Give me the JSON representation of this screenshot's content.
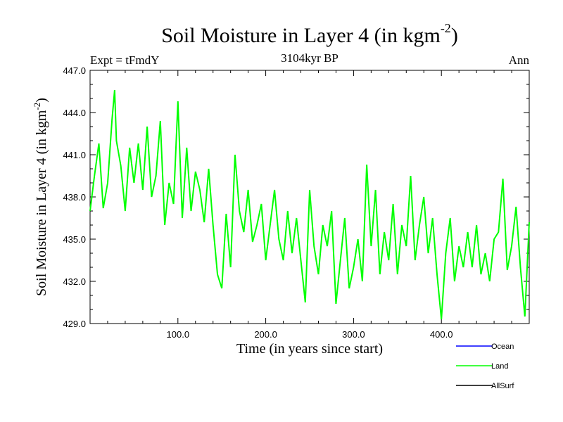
{
  "chart_data": {
    "type": "line",
    "title": "Soil Moisture in Layer 4 (in kgm",
    "title_superscript": "-2",
    "title_suffix": ")",
    "subtitle": "3104kyr BP",
    "left_label": "Expt = tFmdY",
    "right_label": "Ann",
    "xlabel": "Time (in years since start)",
    "ylabel": "Soil Moisture in Layer 4 (in kgm",
    "ylabel_superscript": "-2",
    "ylabel_suffix": ")",
    "xlim": [
      0,
      500
    ],
    "ylim": [
      429.0,
      447.0
    ],
    "x_ticks": [
      100,
      200,
      300,
      400
    ],
    "x_tick_labels": [
      "100.0",
      "200.0",
      "300.0",
      "400.0"
    ],
    "y_ticks": [
      429,
      432,
      435,
      438,
      441,
      444,
      447
    ],
    "y_tick_labels": [
      "429.0",
      "432.0",
      "435.0",
      "438.0",
      "441.0",
      "444.0",
      "447.0"
    ],
    "legend": [
      {
        "name": "Ocean",
        "color": "#0000ff"
      },
      {
        "name": "Land",
        "color": "#00ff00"
      },
      {
        "name": "AllSurf",
        "color": "#000000"
      }
    ],
    "series": [
      {
        "name": "Land",
        "color": "#00ff00",
        "x": [
          0,
          5,
          10,
          15,
          20,
          25,
          28,
          30,
          35,
          40,
          45,
          50,
          55,
          60,
          65,
          70,
          75,
          80,
          85,
          90,
          95,
          100,
          105,
          110,
          115,
          120,
          125,
          130,
          135,
          140,
          145,
          150,
          155,
          160,
          165,
          170,
          175,
          180,
          185,
          190,
          195,
          200,
          205,
          210,
          215,
          220,
          225,
          230,
          235,
          240,
          245,
          250,
          255,
          260,
          265,
          270,
          275,
          280,
          285,
          290,
          295,
          300,
          305,
          310,
          315,
          320,
          325,
          330,
          335,
          340,
          345,
          350,
          355,
          360,
          365,
          370,
          375,
          380,
          385,
          390,
          395,
          400,
          405,
          410,
          415,
          420,
          425,
          430,
          435,
          440,
          445,
          450,
          455,
          460,
          465,
          470,
          475,
          480,
          485,
          490,
          495,
          500
        ],
        "values": [
          437.0,
          439.5,
          441.8,
          437.2,
          439.0,
          443.5,
          445.6,
          442.0,
          440.2,
          437.0,
          441.5,
          439.0,
          441.8,
          438.5,
          443.0,
          438.0,
          439.5,
          443.4,
          436.0,
          439.0,
          437.5,
          444.8,
          436.5,
          441.5,
          437.0,
          439.8,
          438.5,
          436.2,
          440.0,
          436.0,
          432.5,
          431.5,
          436.8,
          433.0,
          441.0,
          437.0,
          435.5,
          438.5,
          434.8,
          436.0,
          437.5,
          433.5,
          436.0,
          438.5,
          435.0,
          433.5,
          437.0,
          434.0,
          436.5,
          433.5,
          430.5,
          438.5,
          434.5,
          432.5,
          436.0,
          434.5,
          437.0,
          430.4,
          433.5,
          436.5,
          431.5,
          433.0,
          435.0,
          432.0,
          440.3,
          434.5,
          438.5,
          432.5,
          435.5,
          433.5,
          437.5,
          432.5,
          436.0,
          434.5,
          439.5,
          433.5,
          436.0,
          438.0,
          434.0,
          436.5,
          432.5,
          429.3,
          434.0,
          436.5,
          432.0,
          434.5,
          433.0,
          435.5,
          433.0,
          436.0,
          432.5,
          434.0,
          432.0,
          435.0,
          435.5,
          439.3,
          432.8,
          434.5,
          437.3,
          433.0,
          429.5,
          436.2
        ]
      }
    ]
  }
}
